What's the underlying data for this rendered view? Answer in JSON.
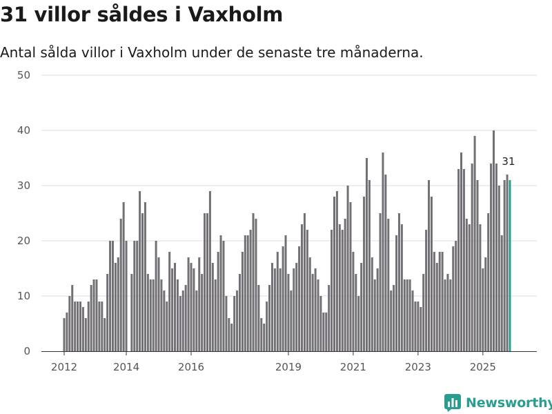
{
  "header": {
    "title": "31 villor såldes i Vaxholm",
    "subtitle": "Antal sålda villor i Vaxholm under de senaste tre månaderna."
  },
  "brand": {
    "name": "Newsworthy",
    "icon": "bar-chart-logo-icon"
  },
  "colors": {
    "bar": "#727075",
    "highlight": "#2a9d8f",
    "grid": "#dddddd",
    "axis": "#333333",
    "text": "#555555"
  },
  "chart_data": {
    "type": "bar",
    "title": "31 villor såldes i Vaxholm",
    "subtitle": "Antal sålda villor i Vaxholm under de senaste tre månaderna.",
    "xlabel": "",
    "ylabel": "",
    "ylim": [
      0,
      50
    ],
    "yticks": [
      0,
      10,
      20,
      30,
      40,
      50
    ],
    "grid": true,
    "x_tick_labels": [
      {
        "label": "2012",
        "index": 0
      },
      {
        "label": "2014",
        "index": 23
      },
      {
        "label": "2016",
        "index": 47
      },
      {
        "label": "2019",
        "index": 83
      },
      {
        "label": "2021",
        "index": 107
      },
      {
        "label": "2023",
        "index": 131
      },
      {
        "label": "2025",
        "index": 155
      }
    ],
    "highlight_label": "31",
    "series": [
      {
        "name": "Antal sålda villor",
        "values": [
          6,
          7,
          10,
          12,
          9,
          9,
          9,
          8,
          6,
          9,
          12,
          13,
          13,
          9,
          9,
          6,
          14,
          20,
          20,
          16,
          17,
          24,
          27,
          20,
          0,
          14,
          20,
          20,
          29,
          25,
          27,
          14,
          13,
          13,
          20,
          17,
          13,
          11,
          9,
          18,
          15,
          16,
          13,
          10,
          11,
          12,
          17,
          16,
          15,
          11,
          17,
          14,
          25,
          25,
          29,
          16,
          13,
          18,
          21,
          20,
          10,
          6,
          5,
          10,
          11,
          14,
          18,
          21,
          21,
          22,
          25,
          24,
          12,
          6,
          5,
          9,
          12,
          16,
          15,
          18,
          15,
          19,
          21,
          14,
          11,
          15,
          16,
          19,
          23,
          25,
          22,
          17,
          14,
          15,
          13,
          10,
          7,
          7,
          12,
          22,
          28,
          29,
          23,
          22,
          24,
          30,
          27,
          18,
          14,
          10,
          16,
          28,
          35,
          31,
          17,
          13,
          15,
          25,
          36,
          32,
          24,
          11,
          12,
          21,
          25,
          23,
          13,
          13,
          13,
          11,
          9,
          9,
          8,
          14,
          22,
          31,
          28,
          18,
          16,
          18,
          18,
          13,
          14,
          13,
          19,
          20,
          33,
          36,
          33,
          24,
          23,
          34,
          39,
          31,
          23,
          15,
          17,
          25,
          34,
          40,
          34,
          30,
          21,
          31,
          32,
          31
        ]
      }
    ]
  }
}
